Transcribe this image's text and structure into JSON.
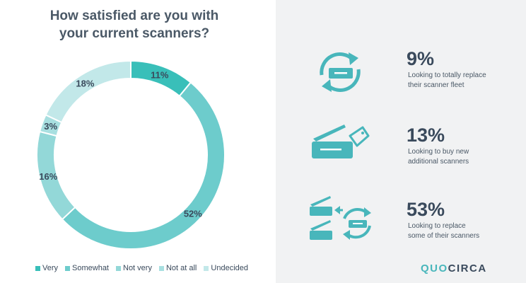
{
  "title_lines": [
    "How satisfied are you with",
    "your current scanners?"
  ],
  "chart_data": {
    "type": "pie",
    "title": "How satisfied are you with your current scanners?",
    "categories": [
      "Very",
      "Somewhat",
      "Not very",
      "Not at all",
      "Undecided"
    ],
    "values": [
      11,
      52,
      16,
      3,
      18
    ],
    "labels": [
      "11%",
      "52%",
      "16%",
      "3%",
      "18%"
    ],
    "colors": [
      "#39bfb9",
      "#6dcccc",
      "#93d8d8",
      "#a8dfe0",
      "#c2e8e9"
    ],
    "legend": "bottom"
  },
  "legend_items": [
    {
      "label": "Very",
      "color": "#39bfb9"
    },
    {
      "label": "Somewhat",
      "color": "#6dcccc"
    },
    {
      "label": "Not very",
      "color": "#93d8d8"
    },
    {
      "label": "Not at all",
      "color": "#a8dfe0"
    },
    {
      "label": "Undecided",
      "color": "#c2e8e9"
    }
  ],
  "stats": [
    {
      "value": "9%",
      "desc_lines": [
        "Looking to totally replace",
        "their scanner fleet"
      ],
      "icon": "scanner-replace-cycle-icon"
    },
    {
      "value": "13%",
      "desc_lines": [
        "Looking to buy new",
        "additional scanners"
      ],
      "icon": "scanner-price-tag-icon"
    },
    {
      "value": "53%",
      "desc_lines": [
        "Looking to replace",
        "some of their scanners"
      ],
      "icon": "scanners-partial-replace-icon"
    }
  ],
  "brand": {
    "part1": "QUO",
    "part2": "CIRCA"
  },
  "accent_color": "#48b6bb"
}
